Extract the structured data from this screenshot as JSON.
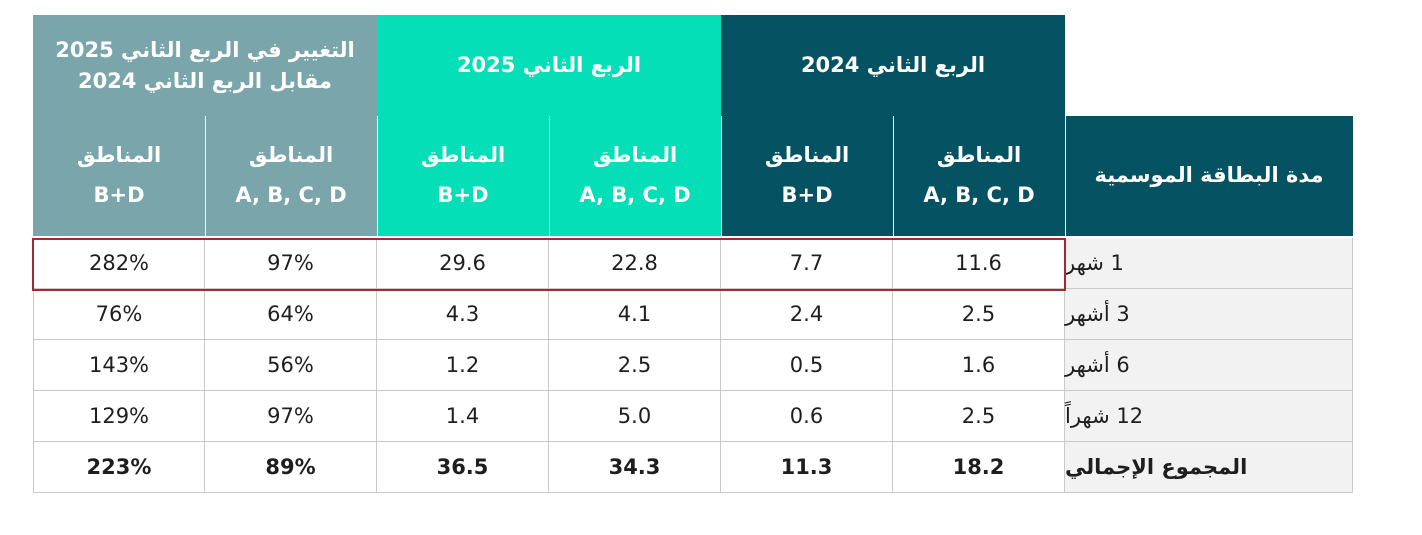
{
  "header": {
    "col_seasonal": "مدة البطاقة الموسمية",
    "q2_2024": "الربع الثاني 2024",
    "q2_2025": "الربع الثاني 2025",
    "change_line1": "التغيير في الربع الثاني 2025",
    "change_line2": "مقابل الربع الثاني 2024",
    "zones_label": "المناطق",
    "zones_abcd": "A, B, C, D",
    "zones_bd": "B+D"
  },
  "rows": [
    {
      "label": "1 شهر",
      "q24_abcd": "11.6",
      "q24_bd": "7.7",
      "q25_abcd": "22.8",
      "q25_bd": "29.6",
      "chg_abcd": "97%",
      "chg_bd": "282%"
    },
    {
      "label": "3 أشهر",
      "q24_abcd": "2.5",
      "q24_bd": "2.4",
      "q25_abcd": "4.1",
      "q25_bd": "4.3",
      "chg_abcd": "64%",
      "chg_bd": "76%"
    },
    {
      "label": "6 أشهر",
      "q24_abcd": "1.6",
      "q24_bd": "0.5",
      "q25_abcd": "2.5",
      "q25_bd": "1.2",
      "chg_abcd": "56%",
      "chg_bd": "143%"
    },
    {
      "label": "12 شهراً",
      "q24_abcd": "2.5",
      "q24_bd": "0.6",
      "q25_abcd": "5.0",
      "q25_bd": "1.4",
      "chg_abcd": "97%",
      "chg_bd": "129%"
    },
    {
      "label": "المجموع الإجمالي",
      "q24_abcd": "18.2",
      "q24_bd": "11.3",
      "q25_abcd": "34.3",
      "q25_bd": "36.5",
      "chg_abcd": "89%",
      "chg_bd": "223%"
    }
  ],
  "colors": {
    "dark_teal": "#055262",
    "turquoise": "#05dfb7",
    "grey_teal": "#7aa5ab",
    "highlight_border": "#a12a35",
    "label_bg": "#f2f2f2"
  }
}
